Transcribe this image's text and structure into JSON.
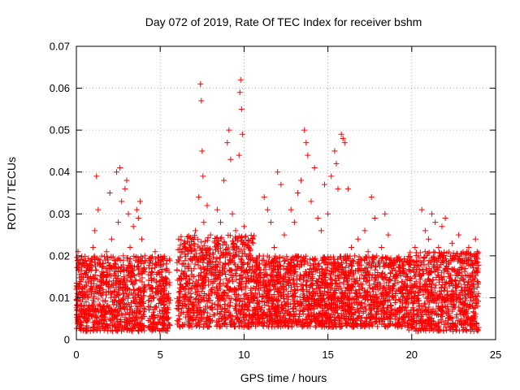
{
  "chart_data": {
    "type": "scatter",
    "title": "Day 072 of 2019, Rate Of TEC Index for receiver bshm",
    "xlabel": "GPS time / hours",
    "ylabel": "ROTI / TECUs",
    "xlim": [
      0,
      25
    ],
    "ylim": [
      0,
      0.07
    ],
    "x_ticks": [
      0,
      5,
      10,
      15,
      20,
      25
    ],
    "x_tick_labels": [
      "0",
      "5",
      "10",
      "15",
      "20",
      "25"
    ],
    "y_ticks": [
      0,
      0.01,
      0.02,
      0.03,
      0.04,
      0.05,
      0.06,
      0.07
    ],
    "y_tick_labels": [
      "0",
      "0.01",
      "0.02",
      "0.03",
      "0.04",
      "0.05",
      "0.06",
      "0.07"
    ],
    "grid": true,
    "marker": "+",
    "color": "#ff0000",
    "series": [
      {
        "name": "ROTI",
        "points": [
          [
            0.0,
            0.012
          ],
          [
            0.1,
            0.021
          ],
          [
            0.2,
            0.008
          ],
          [
            0.3,
            0.015
          ],
          [
            0.4,
            0.019
          ],
          [
            0.5,
            0.006
          ],
          [
            0.6,
            0.016
          ],
          [
            0.7,
            0.01
          ],
          [
            0.8,
            0.018
          ],
          [
            0.9,
            0.014
          ],
          [
            1.0,
            0.022
          ],
          [
            1.1,
            0.026
          ],
          [
            1.2,
            0.039
          ],
          [
            1.3,
            0.031
          ],
          [
            1.4,
            0.018
          ],
          [
            1.5,
            0.004
          ],
          [
            1.6,
            0.012
          ],
          [
            1.8,
            0.021
          ],
          [
            2.0,
            0.035
          ],
          [
            2.1,
            0.024
          ],
          [
            2.2,
            0.014
          ],
          [
            2.3,
            0.009
          ],
          [
            2.4,
            0.04
          ],
          [
            2.5,
            0.028
          ],
          [
            2.6,
            0.041
          ],
          [
            2.7,
            0.033
          ],
          [
            2.8,
            0.02
          ],
          [
            2.9,
            0.036
          ],
          [
            3.0,
            0.038
          ],
          [
            3.1,
            0.03
          ],
          [
            3.2,
            0.022
          ],
          [
            3.3,
            0.015
          ],
          [
            3.4,
            0.027
          ],
          [
            3.5,
            0.011
          ],
          [
            3.6,
            0.031
          ],
          [
            3.7,
            0.029
          ],
          [
            3.8,
            0.033
          ],
          [
            3.9,
            0.024
          ],
          [
            4.0,
            0.006
          ],
          [
            4.1,
            0.012
          ],
          [
            4.3,
            0.003
          ],
          [
            4.5,
            0.017
          ],
          [
            4.7,
            0.021
          ],
          [
            4.9,
            0.016
          ],
          [
            5.0,
            0.013
          ],
          [
            5.2,
            0.009
          ],
          [
            5.4,
            0.005
          ],
          [
            6.1,
            0.024
          ],
          [
            6.3,
            0.018
          ],
          [
            6.5,
            0.022
          ],
          [
            6.7,
            0.012
          ],
          [
            6.9,
            0.019
          ],
          [
            7.1,
            0.026
          ],
          [
            7.3,
            0.034
          ],
          [
            7.4,
            0.061
          ],
          [
            7.45,
            0.057
          ],
          [
            7.5,
            0.045
          ],
          [
            7.55,
            0.039
          ],
          [
            7.6,
            0.028
          ],
          [
            7.8,
            0.032
          ],
          [
            8.0,
            0.025
          ],
          [
            8.2,
            0.016
          ],
          [
            8.4,
            0.031
          ],
          [
            8.6,
            0.028
          ],
          [
            8.8,
            0.038
          ],
          [
            9.0,
            0.047
          ],
          [
            9.1,
            0.05
          ],
          [
            9.2,
            0.043
          ],
          [
            9.3,
            0.03
          ],
          [
            9.5,
            0.026
          ],
          [
            9.7,
            0.044
          ],
          [
            9.75,
            0.059
          ],
          [
            9.8,
            0.062
          ],
          [
            9.85,
            0.055
          ],
          [
            9.9,
            0.049
          ],
          [
            10.0,
            0.027
          ],
          [
            10.2,
            0.018
          ],
          [
            10.5,
            0.024
          ],
          [
            10.8,
            0.019
          ],
          [
            11.0,
            0.016
          ],
          [
            11.2,
            0.034
          ],
          [
            11.4,
            0.031
          ],
          [
            11.6,
            0.028
          ],
          [
            11.8,
            0.022
          ],
          [
            12.0,
            0.04
          ],
          [
            12.2,
            0.037
          ],
          [
            12.4,
            0.025
          ],
          [
            12.6,
            0.019
          ],
          [
            12.8,
            0.031
          ],
          [
            13.0,
            0.028
          ],
          [
            13.2,
            0.035
          ],
          [
            13.4,
            0.038
          ],
          [
            13.6,
            0.05
          ],
          [
            13.7,
            0.047
          ],
          [
            13.8,
            0.044
          ],
          [
            14.0,
            0.033
          ],
          [
            14.2,
            0.041
          ],
          [
            14.4,
            0.029
          ],
          [
            14.6,
            0.026
          ],
          [
            14.8,
            0.037
          ],
          [
            15.0,
            0.03
          ],
          [
            15.2,
            0.039
          ],
          [
            15.4,
            0.045
          ],
          [
            15.5,
            0.042
          ],
          [
            15.6,
            0.036
          ],
          [
            15.8,
            0.049
          ],
          [
            15.9,
            0.048
          ],
          [
            16.0,
            0.047
          ],
          [
            16.2,
            0.036
          ],
          [
            16.4,
            0.022
          ],
          [
            16.6,
            0.02
          ],
          [
            16.8,
            0.024
          ],
          [
            17.0,
            0.019
          ],
          [
            17.2,
            0.026
          ],
          [
            17.4,
            0.021
          ],
          [
            17.6,
            0.034
          ],
          [
            17.8,
            0.029
          ],
          [
            18.0,
            0.018
          ],
          [
            18.2,
            0.022
          ],
          [
            18.4,
            0.03
          ],
          [
            18.6,
            0.025
          ],
          [
            18.8,
            0.018
          ],
          [
            19.0,
            0.015
          ],
          [
            19.2,
            0.012
          ],
          [
            19.5,
            0.017
          ],
          [
            19.7,
            0.009
          ],
          [
            20.0,
            0.013
          ],
          [
            20.2,
            0.022
          ],
          [
            20.4,
            0.02
          ],
          [
            20.6,
            0.031
          ],
          [
            20.8,
            0.026
          ],
          [
            21.0,
            0.024
          ],
          [
            21.2,
            0.03
          ],
          [
            21.4,
            0.028
          ],
          [
            21.6,
            0.022
          ],
          [
            21.8,
            0.027
          ],
          [
            22.0,
            0.029
          ],
          [
            22.2,
            0.018
          ],
          [
            22.4,
            0.023
          ],
          [
            22.6,
            0.02
          ],
          [
            22.8,
            0.025
          ],
          [
            23.0,
            0.019
          ],
          [
            23.2,
            0.017
          ],
          [
            23.4,
            0.022
          ],
          [
            23.6,
            0.018
          ],
          [
            23.8,
            0.024
          ],
          [
            23.9,
            0.021
          ],
          [
            0.2,
            0.004
          ],
          [
            0.7,
            0.005
          ],
          [
            1.1,
            0.007
          ],
          [
            1.7,
            0.003
          ],
          [
            2.3,
            0.003
          ],
          [
            3.2,
            0.005
          ],
          [
            3.8,
            0.004
          ],
          [
            4.6,
            0.004
          ],
          [
            6.6,
            0.006
          ],
          [
            7.9,
            0.003
          ],
          [
            8.7,
            0.005
          ],
          [
            9.4,
            0.004
          ],
          [
            10.3,
            0.003
          ],
          [
            11.1,
            0.005
          ],
          [
            12.5,
            0.004
          ],
          [
            13.3,
            0.006
          ],
          [
            14.5,
            0.004
          ],
          [
            15.3,
            0.003
          ],
          [
            16.1,
            0.005
          ],
          [
            17.1,
            0.004
          ],
          [
            18.3,
            0.005
          ],
          [
            19.1,
            0.006
          ],
          [
            20.3,
            0.004
          ],
          [
            21.1,
            0.005
          ],
          [
            22.5,
            0.003
          ],
          [
            23.1,
            0.004
          ],
          [
            23.7,
            0.002
          ]
        ]
      }
    ],
    "dense_bands": [
      {
        "x_range": [
          0.0,
          4.1
        ],
        "y_range": [
          0.002,
          0.02
        ]
      },
      {
        "x_range": [
          4.3,
          5.6
        ],
        "y_range": [
          0.002,
          0.02
        ]
      },
      {
        "x_range": [
          6.0,
          10.6
        ],
        "y_range": [
          0.003,
          0.025
        ]
      },
      {
        "x_range": [
          10.6,
          19.8
        ],
        "y_range": [
          0.003,
          0.02
        ]
      },
      {
        "x_range": [
          19.8,
          24.0
        ],
        "y_range": [
          0.002,
          0.021
        ]
      }
    ]
  }
}
